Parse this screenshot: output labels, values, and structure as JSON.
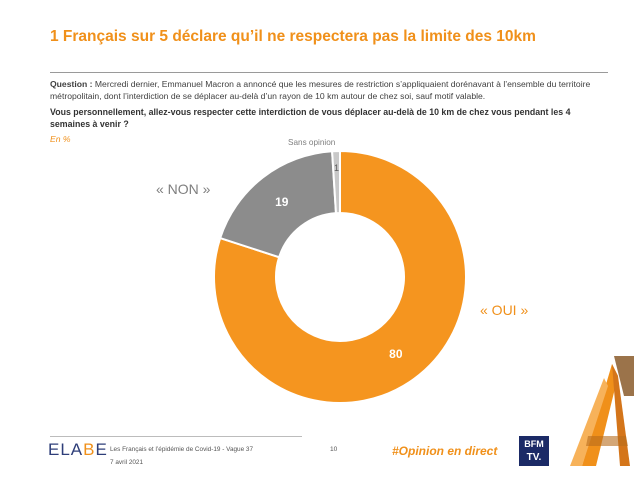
{
  "title": "1 Français sur 5 déclare qu’il ne respectera pas la limite des 10km",
  "question": {
    "label": "Question :",
    "text": "Mercredi dernier, Emmanuel Macron a annoncé que les mesures de restriction s’appliquaient dorénavant à l’ensemble du territoire métropolitain, dont l’interdiction de se déplacer au-delà d’un rayon de 10 km autour de chez soi, sauf motif valable.",
    "subquestion": "Vous personnellement, allez-vous respecter cette interdiction de vous déplacer au-delà de 10 km de chez vous pendant les 4 semaines à venir ?",
    "unit": "En %"
  },
  "labels": {
    "non": "« NON »",
    "oui": "« OUI »",
    "sans_opinion": "Sans opinion"
  },
  "chart_data": {
    "type": "pie",
    "categories": [
      "OUI",
      "NON",
      "Sans opinion"
    ],
    "values": [
      80,
      19,
      1
    ],
    "colors": [
      "#f5951f",
      "#8c8c8c",
      "#c8c8c8"
    ],
    "label_colors": [
      "#ffffff",
      "#ffffff",
      "#595959"
    ]
  },
  "footer": {
    "logo_main": "ELA",
    "logo_accent": "B",
    "logo_end": "E",
    "source_line1": "Les Français et l’épidémie de Covid-19 - Vague 37",
    "source_line2": "7 avril 2021",
    "page": "10",
    "hashtag": "#Opinion en direct",
    "bfm_line1": "BFM",
    "bfm_line2": "TV."
  }
}
